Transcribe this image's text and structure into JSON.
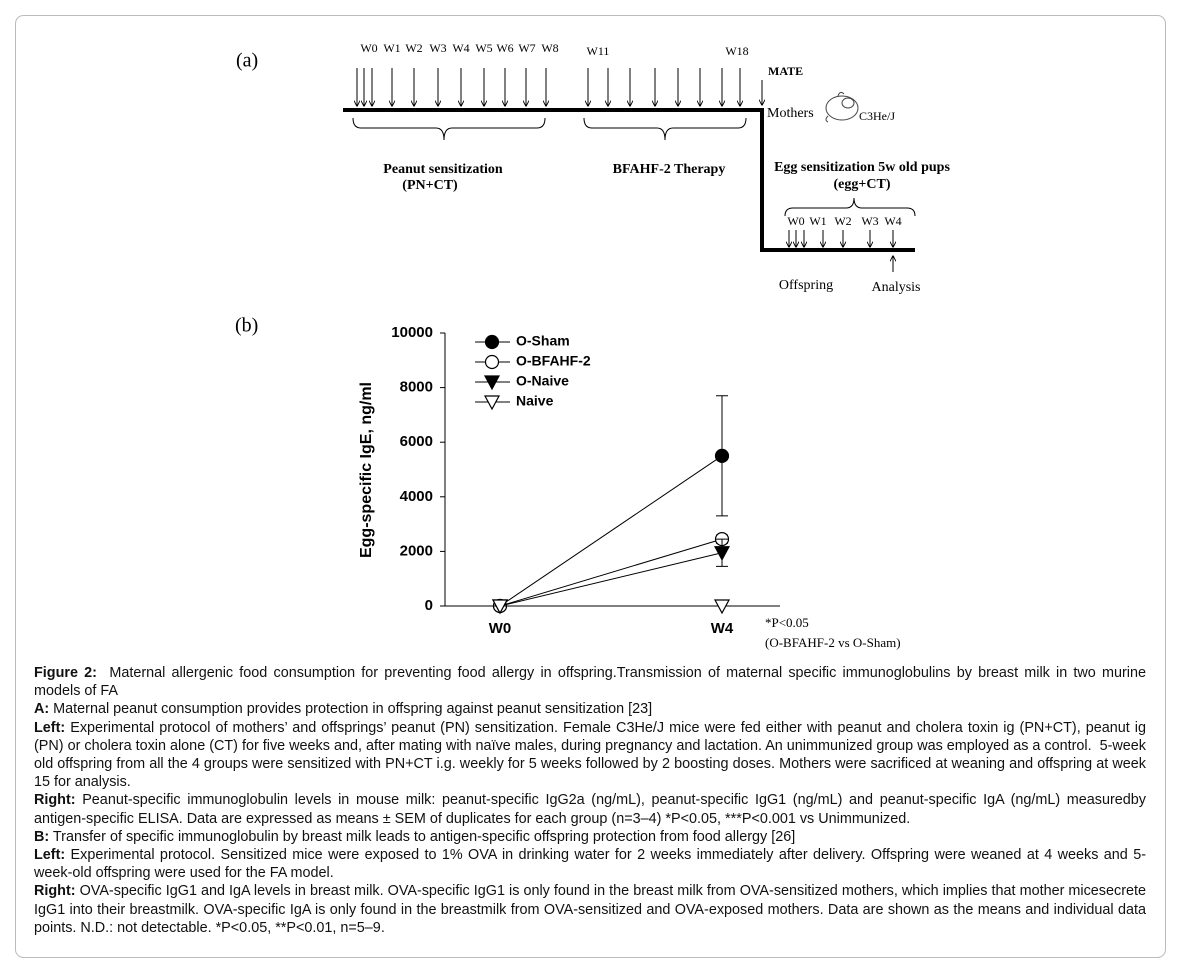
{
  "panel_a": {
    "label": "(a)",
    "mother_weeks": [
      "W0",
      "W1",
      "W2",
      "W3",
      "W4",
      "W5",
      "W6",
      "W7",
      "W8"
    ],
    "therapy_weeks": [
      "W11",
      "W18"
    ],
    "mate": "MATE",
    "mothers": "Mothers",
    "strain": "C3He/J",
    "phase1": "Peanut sensitization",
    "phase1_sub": "(PN+CT)",
    "phase2": "BFAHF-2 Therapy",
    "phase3": "Egg  sensitization 5w old pups",
    "phase3_sub": "(egg+CT)",
    "pup_weeks": [
      "W0",
      "W1",
      "W2",
      "W3",
      "W4"
    ],
    "offspring": "Offspring",
    "analysis": "Analysis"
  },
  "chart_data": {
    "type": "line",
    "panel_label": "(b)",
    "ylabel": "Egg-specific IgE, ng/ml",
    "categories": [
      "W0",
      "W4"
    ],
    "ylim": [
      0,
      10000
    ],
    "yticks": [
      0,
      2000,
      4000,
      6000,
      8000,
      10000
    ],
    "series": [
      {
        "name": "O-Sham",
        "color": "#000000",
        "marker": "circle",
        "filled": true,
        "values": [
          0,
          5500
        ],
        "errors": [
          0,
          2200
        ]
      },
      {
        "name": "O-BFAHF-2",
        "color": "#000000",
        "marker": "circle",
        "filled": false,
        "values": [
          0,
          2450
        ],
        "errors": [
          0,
          150
        ]
      },
      {
        "name": "O-Naive",
        "color": "#000000",
        "marker": "triangle-down",
        "filled": true,
        "values": [
          0,
          1950
        ],
        "errors": [
          0,
          500
        ]
      },
      {
        "name": "Naive",
        "color": "#000000",
        "marker": "triangle-down",
        "filled": false,
        "values": [
          0,
          0
        ],
        "errors": [
          0,
          0
        ]
      }
    ],
    "annotation": "*P<0.05",
    "annotation_sub": "(O-BFAHF-2 vs O-Sham)"
  },
  "caption": [
    {
      "label": "Figure 2:",
      "text": "  Maternal allergenic food consumption for preventing food allergy in offspring.Transmission of maternal specific immunoglobulins by breast milk in two murine models of FA"
    },
    {
      "label": "A:",
      "text": " Maternal peanut consumption provides protection in offspring against peanut sensitization [23]"
    },
    {
      "label": "Left:",
      "text": " Experimental protocol of mothers’ and offsprings’ peanut (PN) sensitization. Female C3He/J mice were fed either with peanut and cholera toxin ig (PN+CT), peanut ig (PN) or cholera toxin alone (CT) for five weeks and, after mating with naïve males, during pregnancy and lactation. An unimmunized group was employed as a control.  5-week old offspring from all the 4 groups were sensitized with PN+CT i.g. weekly for 5 weeks followed by 2 boosting doses. Mothers were sacrificed at weaning and offspring at week 15 for analysis."
    },
    {
      "label": "Right:",
      "text": " Peanut-specific immunoglobulin levels in mouse milk: peanut-specific IgG2a (ng/mL), peanut-specific IgG1 (ng/mL) and peanut-specific IgA (ng/mL) measuredby antigen-specific ELISA. Data are expressed as means ± SEM of duplicates for each group (n=3–4) *P<0.05, ***P<0.001 vs Unimmunized."
    },
    {
      "label": "B:",
      "text": " Transfer of specific immunoglobulin by breast milk leads to antigen-specific offspring protection from food allergy [26]"
    },
    {
      "label": "Left:",
      "text": " Experimental protocol. Sensitized mice were exposed to 1% OVA in drinking water for 2 weeks immediately after delivery. Offspring were weaned at 4 weeks and 5-week-old offspring were used for the FA model."
    },
    {
      "label": "Right:",
      "text": " OVA-specific IgG1 and IgA levels in breast milk. OVA-specific IgG1 is only found in the breast milk from OVA-sensitized mothers, which implies that mother micesecrete IgG1 into their breastmilk. OVA-specific IgA is only found in the breastmilk from OVA-sensitized and OVA-exposed mothers. Data are shown as the means and individual data points. N.D.: not detectable. *P<0.05, **P<0.01, n=5–9."
    }
  ]
}
